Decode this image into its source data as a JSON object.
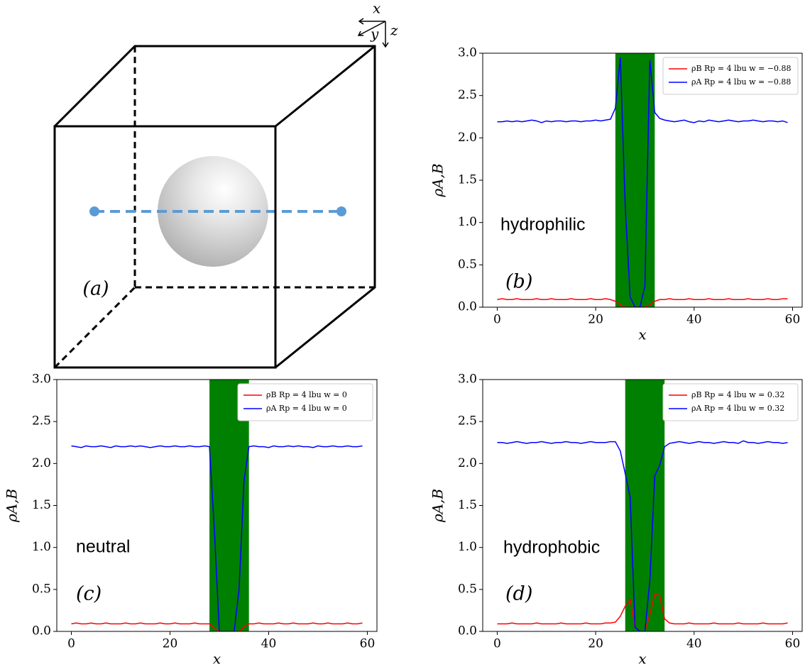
{
  "diagram": {
    "panel_label": "(a)",
    "axis_labels": [
      "x",
      "y",
      "z"
    ]
  },
  "chart_data": [
    {
      "type": "line",
      "panel_label": "(b)",
      "annotation": "hydrophilic",
      "xlabel": "x",
      "ylabel": "ρA,B",
      "xlim": [
        -2.95,
        61.95
      ],
      "ylim": [
        0,
        3
      ],
      "xticks": [
        0,
        20,
        40,
        60
      ],
      "yticks": [
        {
          "value": 0,
          "label": "0.0"
        },
        0.5,
        {
          "value": 1,
          "label": "1.0"
        },
        1.5,
        {
          "value": 2,
          "label": "2.0"
        },
        2.5,
        {
          "value": 3,
          "label": "3.0"
        }
      ],
      "band": [
        24,
        32
      ],
      "band_color": "#008000",
      "legend": "upper right",
      "x": [
        0,
        1,
        2,
        3,
        4,
        5,
        6,
        7,
        8,
        9,
        10,
        11,
        12,
        13,
        14,
        15,
        16,
        17,
        18,
        19,
        20,
        21,
        22,
        23,
        24,
        25,
        26,
        27,
        28,
        29,
        30,
        31,
        32,
        33,
        34,
        35,
        36,
        37,
        38,
        39,
        40,
        41,
        42,
        43,
        44,
        45,
        46,
        47,
        48,
        49,
        50,
        51,
        52,
        53,
        54,
        55,
        56,
        57,
        58,
        59
      ],
      "series": [
        {
          "name": "ρB Rp = 4 lbu w = −0.88",
          "color": "#ff0000",
          "values": [
            0.09,
            0.1,
            0.09,
            0.09,
            0.1,
            0.09,
            0.09,
            0.09,
            0.1,
            0.09,
            0.09,
            0.1,
            0.09,
            0.09,
            0.09,
            0.1,
            0.09,
            0.09,
            0.09,
            0.1,
            0.09,
            0.09,
            0.1,
            0.09,
            0.07,
            0.03,
            0.0,
            0.0,
            0.0,
            0.0,
            0.0,
            0.03,
            0.07,
            0.09,
            0.09,
            0.1,
            0.09,
            0.09,
            0.09,
            0.1,
            0.09,
            0.09,
            0.09,
            0.1,
            0.09,
            0.09,
            0.09,
            0.1,
            0.09,
            0.09,
            0.09,
            0.1,
            0.09,
            0.09,
            0.09,
            0.1,
            0.09,
            0.09,
            0.1,
            0.1
          ]
        },
        {
          "name": "ρA Rp = 4 lbu w = −0.88",
          "color": "#0000ff",
          "values": [
            2.19,
            2.19,
            2.2,
            2.19,
            2.2,
            2.19,
            2.2,
            2.21,
            2.2,
            2.18,
            2.2,
            2.19,
            2.2,
            2.2,
            2.19,
            2.2,
            2.2,
            2.19,
            2.2,
            2.2,
            2.21,
            2.2,
            2.21,
            2.22,
            2.35,
            2.95,
            1.2,
            0.12,
            0.0,
            0.0,
            0.25,
            2.92,
            2.3,
            2.23,
            2.21,
            2.2,
            2.19,
            2.2,
            2.21,
            2.19,
            2.18,
            2.2,
            2.19,
            2.21,
            2.2,
            2.19,
            2.2,
            2.21,
            2.2,
            2.19,
            2.2,
            2.2,
            2.21,
            2.2,
            2.19,
            2.2,
            2.2,
            2.19,
            2.2,
            2.18
          ]
        }
      ]
    },
    {
      "type": "line",
      "panel_label": "(c)",
      "annotation": "neutral",
      "xlabel": "x",
      "ylabel": "ρA,B",
      "xlim": [
        -2.95,
        61.95
      ],
      "ylim": [
        0,
        3
      ],
      "xticks": [
        0,
        20,
        40,
        60
      ],
      "yticks": [
        {
          "value": 0,
          "label": "0.0"
        },
        0.5,
        {
          "value": 1,
          "label": "1.0"
        },
        1.5,
        {
          "value": 2,
          "label": "2.0"
        },
        2.5,
        {
          "value": 3,
          "label": "3.0"
        }
      ],
      "band": [
        28,
        36
      ],
      "band_color": "#008000",
      "legend": "upper right",
      "x": [
        0,
        1,
        2,
        3,
        4,
        5,
        6,
        7,
        8,
        9,
        10,
        11,
        12,
        13,
        14,
        15,
        16,
        17,
        18,
        19,
        20,
        21,
        22,
        23,
        24,
        25,
        26,
        27,
        28,
        29,
        30,
        31,
        32,
        33,
        34,
        35,
        36,
        37,
        38,
        39,
        40,
        41,
        42,
        43,
        44,
        45,
        46,
        47,
        48,
        49,
        50,
        51,
        52,
        53,
        54,
        55,
        56,
        57,
        58,
        59
      ],
      "series": [
        {
          "name": "ρB Rp = 4 lbu w = 0",
          "color": "#ff0000",
          "values": [
            0.09,
            0.1,
            0.09,
            0.09,
            0.1,
            0.09,
            0.09,
            0.1,
            0.09,
            0.09,
            0.09,
            0.1,
            0.09,
            0.09,
            0.1,
            0.09,
            0.09,
            0.09,
            0.1,
            0.09,
            0.09,
            0.1,
            0.09,
            0.09,
            0.09,
            0.1,
            0.09,
            0.09,
            0.09,
            0.04,
            0.0,
            0.0,
            0.0,
            0.0,
            0.0,
            0.05,
            0.09,
            0.09,
            0.1,
            0.09,
            0.09,
            0.09,
            0.1,
            0.09,
            0.09,
            0.1,
            0.09,
            0.09,
            0.09,
            0.1,
            0.09,
            0.09,
            0.1,
            0.09,
            0.09,
            0.09,
            0.1,
            0.09,
            0.09,
            0.1
          ]
        },
        {
          "name": "ρA Rp = 4 lbu w = 0",
          "color": "#0000ff",
          "values": [
            2.21,
            2.2,
            2.19,
            2.21,
            2.2,
            2.2,
            2.21,
            2.2,
            2.19,
            2.21,
            2.2,
            2.2,
            2.21,
            2.2,
            2.21,
            2.2,
            2.19,
            2.2,
            2.21,
            2.2,
            2.2,
            2.21,
            2.2,
            2.2,
            2.21,
            2.2,
            2.2,
            2.21,
            2.2,
            1.2,
            0.0,
            0.0,
            0.0,
            0.0,
            0.5,
            1.8,
            2.2,
            2.21,
            2.2,
            2.2,
            2.19,
            2.21,
            2.2,
            2.2,
            2.21,
            2.2,
            2.21,
            2.2,
            2.2,
            2.19,
            2.21,
            2.2,
            2.2,
            2.21,
            2.2,
            2.2,
            2.21,
            2.2,
            2.2,
            2.21
          ]
        }
      ]
    },
    {
      "type": "line",
      "panel_label": "(d)",
      "annotation": "hydrophobic",
      "xlabel": "x",
      "ylabel": "ρA,B",
      "xlim": [
        -2.95,
        61.95
      ],
      "ylim": [
        0,
        3
      ],
      "xticks": [
        0,
        20,
        40,
        60
      ],
      "yticks": [
        {
          "value": 0,
          "label": "0.0"
        },
        0.5,
        {
          "value": 1,
          "label": "1.0"
        },
        1.5,
        {
          "value": 2,
          "label": "2.0"
        },
        2.5,
        {
          "value": 3,
          "label": "3.0"
        }
      ],
      "band": [
        26,
        34
      ],
      "band_color": "#008000",
      "legend": "upper right",
      "x": [
        0,
        1,
        2,
        3,
        4,
        5,
        6,
        7,
        8,
        9,
        10,
        11,
        12,
        13,
        14,
        15,
        16,
        17,
        18,
        19,
        20,
        21,
        22,
        23,
        24,
        25,
        26,
        27,
        28,
        29,
        30,
        31,
        32,
        33,
        34,
        35,
        36,
        37,
        38,
        39,
        40,
        41,
        42,
        43,
        44,
        45,
        46,
        47,
        48,
        49,
        50,
        51,
        52,
        53,
        54,
        55,
        56,
        57,
        58,
        59
      ],
      "series": [
        {
          "name": "ρB Rp = 4 lbu w = 0.32",
          "color": "#ff0000",
          "values": [
            0.09,
            0.09,
            0.09,
            0.1,
            0.09,
            0.09,
            0.09,
            0.09,
            0.1,
            0.09,
            0.09,
            0.09,
            0.09,
            0.1,
            0.09,
            0.09,
            0.09,
            0.09,
            0.1,
            0.09,
            0.09,
            0.09,
            0.1,
            0.1,
            0.11,
            0.18,
            0.3,
            0.38,
            0.05,
            0.0,
            0.0,
            0.2,
            0.44,
            0.43,
            0.15,
            0.1,
            0.09,
            0.09,
            0.09,
            0.1,
            0.09,
            0.09,
            0.09,
            0.09,
            0.1,
            0.09,
            0.09,
            0.09,
            0.09,
            0.1,
            0.09,
            0.09,
            0.09,
            0.09,
            0.1,
            0.09,
            0.09,
            0.09,
            0.09,
            0.1
          ]
        },
        {
          "name": "ρA Rp = 4 lbu w = 0.32",
          "color": "#0000ff",
          "values": [
            2.25,
            2.25,
            2.24,
            2.25,
            2.26,
            2.25,
            2.24,
            2.25,
            2.25,
            2.26,
            2.25,
            2.24,
            2.25,
            2.25,
            2.26,
            2.25,
            2.25,
            2.24,
            2.25,
            2.26,
            2.25,
            2.25,
            2.25,
            2.26,
            2.26,
            2.15,
            1.88,
            1.6,
            0.05,
            0.0,
            0.0,
            0.6,
            1.85,
            1.98,
            2.2,
            2.24,
            2.25,
            2.26,
            2.25,
            2.24,
            2.25,
            2.26,
            2.25,
            2.25,
            2.24,
            2.25,
            2.26,
            2.25,
            2.25,
            2.24,
            2.27,
            2.25,
            2.25,
            2.24,
            2.25,
            2.26,
            2.25,
            2.25,
            2.24,
            2.25
          ]
        }
      ]
    }
  ]
}
